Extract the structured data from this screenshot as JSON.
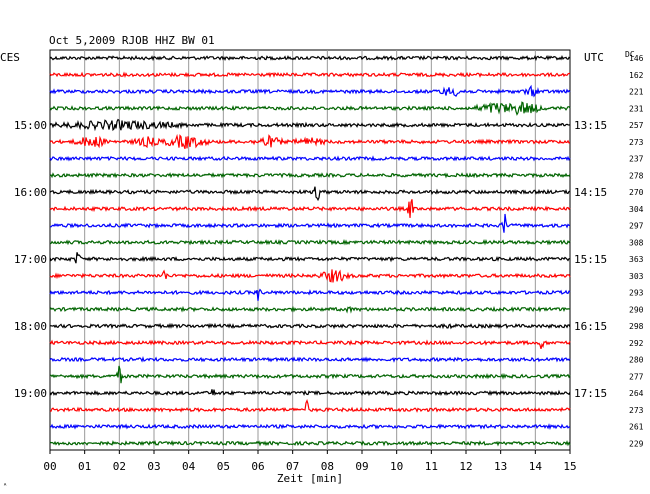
{
  "header": {
    "title": "Oct 5,2009   RJOB HHZ BW 01",
    "left_tz": "CES",
    "right_tz": "UTC",
    "dc_label": "DC"
  },
  "chart_data": {
    "type": "line",
    "title": "Oct 5,2009   RJOB HHZ BW 01",
    "xlabel": "Zeit [min]",
    "x_ticks": [
      "00",
      "01",
      "02",
      "03",
      "04",
      "05",
      "06",
      "07",
      "08",
      "09",
      "10",
      "11",
      "12",
      "13",
      "14",
      "15"
    ],
    "xlim": [
      0,
      15
    ],
    "grid": true,
    "trace_colors": [
      "#000000",
      "#ff0000",
      "#0000ff",
      "#006400"
    ],
    "left_hour_labels": [
      "15:00",
      "16:00",
      "17:00",
      "18:00",
      "19:00"
    ],
    "right_hour_labels": [
      "13:15",
      "14:15",
      "15:15",
      "16:15",
      "17:15"
    ],
    "dc_offsets": [
      146,
      162,
      221,
      231,
      257,
      273,
      237,
      278,
      270,
      304,
      297,
      308,
      363,
      303,
      293,
      290,
      298,
      292,
      280,
      277,
      264,
      273,
      261,
      229
    ],
    "events": [
      {
        "trace": 4,
        "minute": 2.0,
        "amp": 4,
        "dur": 2.2
      },
      {
        "trace": 5,
        "minute": 1.2,
        "amp": 5,
        "dur": 0.6
      },
      {
        "trace": 5,
        "minute": 2.8,
        "amp": 4,
        "dur": 0.5
      },
      {
        "trace": 5,
        "minute": 3.9,
        "amp": 6,
        "dur": 0.8
      },
      {
        "trace": 5,
        "minute": 6.3,
        "amp": 5,
        "dur": 0.5
      },
      {
        "trace": 5,
        "minute": 7.5,
        "amp": 3,
        "dur": 0.6
      },
      {
        "trace": 2,
        "minute": 11.6,
        "amp": 4,
        "dur": 0.5
      },
      {
        "trace": 2,
        "minute": 13.9,
        "amp": 4,
        "dur": 0.3
      },
      {
        "trace": 3,
        "minute": 12.9,
        "amp": 5,
        "dur": 0.8
      },
      {
        "trace": 3,
        "minute": 13.6,
        "amp": 6,
        "dur": 0.7
      },
      {
        "trace": 8,
        "minute": 7.7,
        "amp": 12,
        "dur": 0.1
      },
      {
        "trace": 9,
        "minute": 10.4,
        "amp": 14,
        "dur": 0.1
      },
      {
        "trace": 10,
        "minute": 13.1,
        "amp": 16,
        "dur": 0.1
      },
      {
        "trace": 12,
        "minute": 0.8,
        "amp": 8,
        "dur": 0.1
      },
      {
        "trace": 13,
        "minute": 3.3,
        "amp": 6,
        "dur": 0.1
      },
      {
        "trace": 13,
        "minute": 8.2,
        "amp": 6,
        "dur": 0.5
      },
      {
        "trace": 14,
        "minute": 6.0,
        "amp": 7,
        "dur": 0.1
      },
      {
        "trace": 15,
        "minute": 8.6,
        "amp": 4,
        "dur": 0.1
      },
      {
        "trace": 16,
        "minute": 11.5,
        "amp": 3,
        "dur": 0.1
      },
      {
        "trace": 17,
        "minute": 14.2,
        "amp": 8,
        "dur": 0.1
      },
      {
        "trace": 19,
        "minute": 2.0,
        "amp": 11,
        "dur": 0.1
      },
      {
        "trace": 20,
        "minute": 4.7,
        "amp": 4,
        "dur": 0.1
      },
      {
        "trace": 21,
        "minute": 7.4,
        "amp": 9,
        "dur": 0.1
      }
    ]
  },
  "footer": {
    "corner_mark": "ᴬ"
  }
}
